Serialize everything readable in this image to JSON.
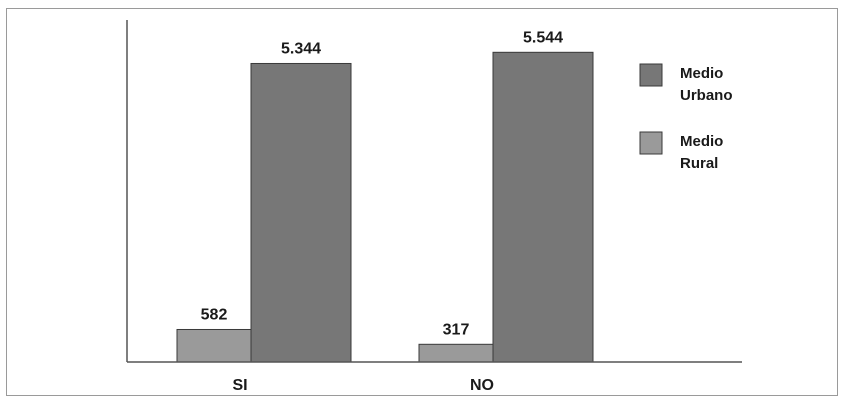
{
  "chart_data": {
    "type": "bar",
    "categories": [
      "SI",
      "NO"
    ],
    "series": [
      {
        "name_lines": [
          "Medio",
          "Rural"
        ],
        "color": "#9a9a9a",
        "values": [
          582,
          317
        ],
        "labels": [
          "582",
          "317"
        ]
      },
      {
        "name_lines": [
          "Medio",
          "Urbano"
        ],
        "color": "#777777",
        "values": [
          5344,
          5544
        ],
        "labels": [
          "5.344",
          "5.544"
        ]
      }
    ],
    "ylim": [
      0,
      5800
    ],
    "grid": false,
    "legend_position": "right",
    "legend_order": [
      1,
      0
    ]
  }
}
